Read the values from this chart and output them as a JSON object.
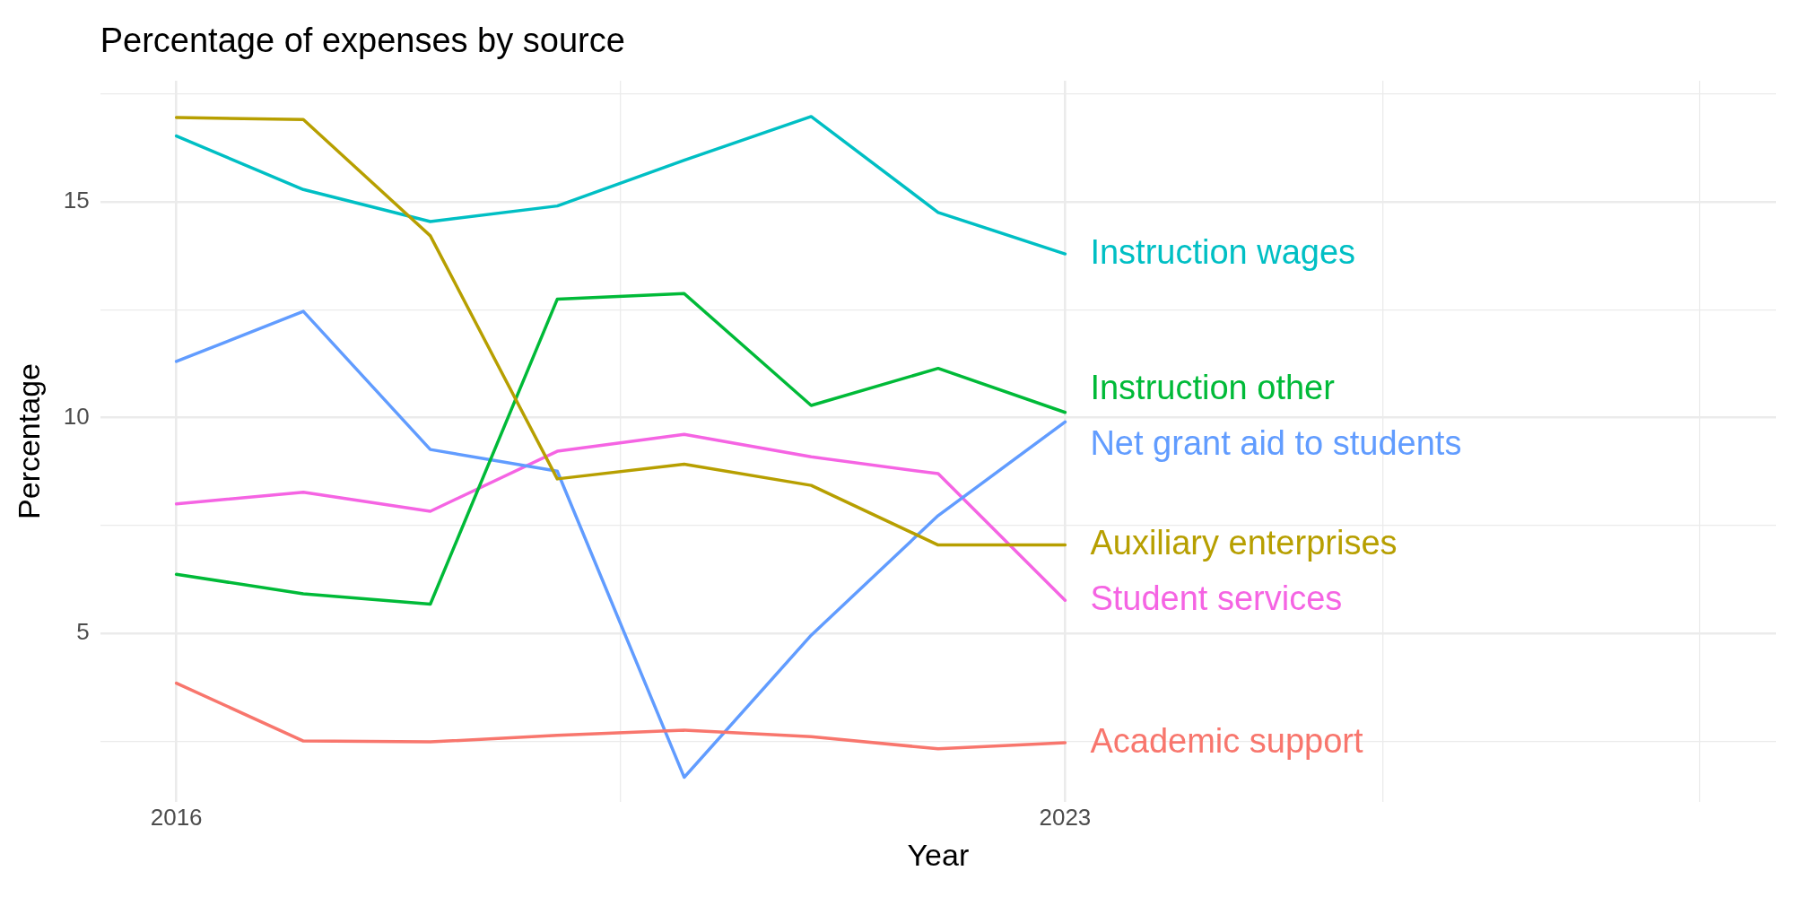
{
  "chart_data": {
    "type": "line",
    "title": "Percentage of expenses by source",
    "xlabel": "Year",
    "ylabel": "Percentage",
    "x": [
      2016,
      2017,
      2018,
      2019,
      2020,
      2021,
      2022,
      2023
    ],
    "xlim": [
      2015.4,
      2028.6
    ],
    "xticks": [
      2016,
      {
        "value": 2019.5,
        "label": null
      },
      2023,
      {
        "value": 2025.5,
        "label": null
      },
      {
        "value": 2028,
        "label": null
      }
    ],
    "ylim": [
      1.1,
      17.8
    ],
    "yticks": [
      {
        "value": 2.5,
        "label": null
      },
      5,
      {
        "value": 7.5,
        "label": null
      },
      10,
      {
        "value": 12.5,
        "label": null
      },
      15,
      {
        "value": 17.5,
        "label": null
      }
    ],
    "grid": true,
    "legend": false,
    "marker": "none",
    "line_style": "solid",
    "series": [
      {
        "name": "Academic support",
        "color": "#f8766d",
        "values": [
          3.85,
          2.51,
          2.49,
          2.64,
          2.76,
          2.61,
          2.33,
          2.47
        ]
      },
      {
        "name": "Auxiliary enterprises",
        "color": "#b79f00",
        "values": [
          16.95,
          16.9,
          14.21,
          8.58,
          8.92,
          8.43,
          7.05,
          7.05
        ]
      },
      {
        "name": "Instruction other",
        "color": "#00ba38",
        "values": [
          6.37,
          5.92,
          5.68,
          12.74,
          12.87,
          10.28,
          11.14,
          10.12
        ]
      },
      {
        "name": "Instruction wages",
        "color": "#00bfc4",
        "values": [
          16.52,
          15.28,
          14.54,
          14.9,
          15.96,
          16.97,
          14.75,
          13.79
        ]
      },
      {
        "name": "Net grant aid to students",
        "color": "#619cff",
        "values": [
          11.3,
          12.46,
          9.26,
          8.76,
          1.67,
          4.96,
          7.73,
          9.9
        ]
      },
      {
        "name": "Student services",
        "color": "#f564e3",
        "values": [
          8.0,
          8.27,
          7.83,
          9.22,
          9.61,
          9.09,
          8.7,
          5.77
        ]
      }
    ]
  }
}
